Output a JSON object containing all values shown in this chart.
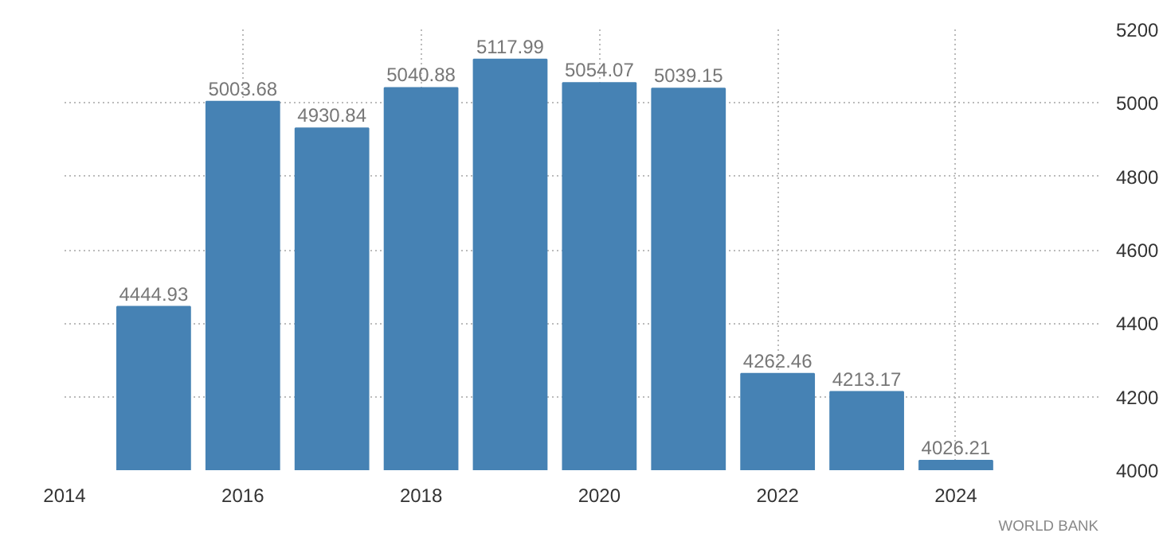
{
  "chart_data": {
    "type": "bar",
    "x": [
      2015,
      2016,
      2017,
      2018,
      2019,
      2020,
      2021,
      2022,
      2023,
      2024
    ],
    "values": [
      4444.93,
      5003.68,
      4930.84,
      5040.88,
      5117.99,
      5054.07,
      5039.15,
      4262.46,
      4213.17,
      4026.21
    ],
    "color": "#4682b4",
    "data_labels": true,
    "xlim": [
      2014,
      2025.6
    ],
    "xticks": [
      2014,
      2016,
      2018,
      2020,
      2022,
      2024
    ],
    "ylim": [
      4000,
      5200
    ],
    "yticks": [
      4000,
      4200,
      4400,
      4600,
      4800,
      5000,
      5200
    ],
    "grid": true,
    "annotations": [
      "WORLD BANK"
    ]
  }
}
